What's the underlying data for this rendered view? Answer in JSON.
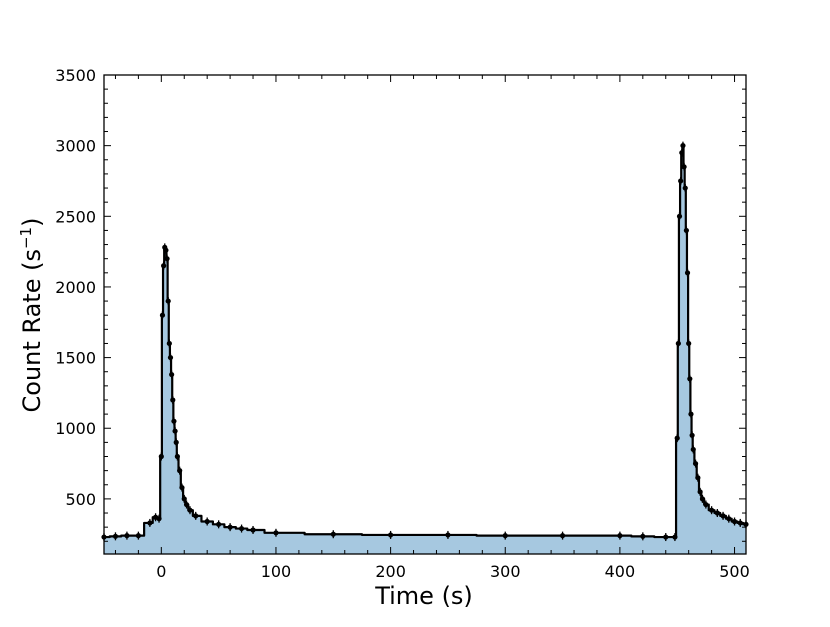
{
  "chart_data": {
    "type": "line",
    "title": "",
    "xlabel": "Time (s)",
    "ylabel_main": "Count Rate (s",
    "ylabel_sup": "−1",
    "ylabel_close": ")",
    "xlim": [
      -50,
      510
    ],
    "ylim": [
      110,
      3500
    ],
    "xticks": [
      0,
      100,
      200,
      300,
      400,
      500
    ],
    "xtick_labels": [
      "0",
      "100",
      "200",
      "300",
      "400",
      "500"
    ],
    "yticks": [
      500,
      1000,
      1500,
      2000,
      2500,
      3000,
      3500
    ],
    "ytick_labels": [
      "500",
      "1000",
      "1500",
      "2000",
      "2500",
      "3000",
      "3500"
    ],
    "grid": false,
    "legend": "none",
    "colors": {
      "fill": "#a6c8e0",
      "line": "#000000",
      "marker": "#000000"
    },
    "series": [
      {
        "x": [
          -50,
          -40,
          -30,
          -20,
          -10,
          -5,
          -2,
          0,
          1,
          2,
          3,
          4,
          5,
          6,
          7,
          8,
          9,
          10,
          11,
          12,
          13,
          14,
          16,
          18,
          20,
          22,
          25,
          30,
          40,
          50,
          60,
          70,
          80,
          100,
          150,
          200,
          250,
          300,
          350,
          400,
          420,
          440,
          448,
          450,
          451,
          452,
          453,
          454,
          455,
          456,
          457,
          458,
          459,
          460,
          461,
          462,
          463,
          464,
          466,
          468,
          470,
          472,
          475,
          480,
          485,
          490,
          495,
          500,
          505,
          510
        ],
        "y": [
          230,
          235,
          240,
          240,
          330,
          370,
          360,
          800,
          1800,
          2150,
          2280,
          2260,
          2200,
          1900,
          1600,
          1500,
          1380,
          1200,
          1050,
          980,
          900,
          800,
          700,
          580,
          500,
          460,
          420,
          380,
          340,
          320,
          300,
          290,
          280,
          260,
          250,
          245,
          245,
          240,
          240,
          240,
          235,
          230,
          230,
          930,
          1600,
          2500,
          2750,
          2950,
          3000,
          2850,
          2700,
          2400,
          2100,
          1600,
          1350,
          1100,
          950,
          850,
          750,
          650,
          550,
          500,
          460,
          420,
          400,
          380,
          360,
          340,
          330,
          320
        ]
      }
    ]
  }
}
